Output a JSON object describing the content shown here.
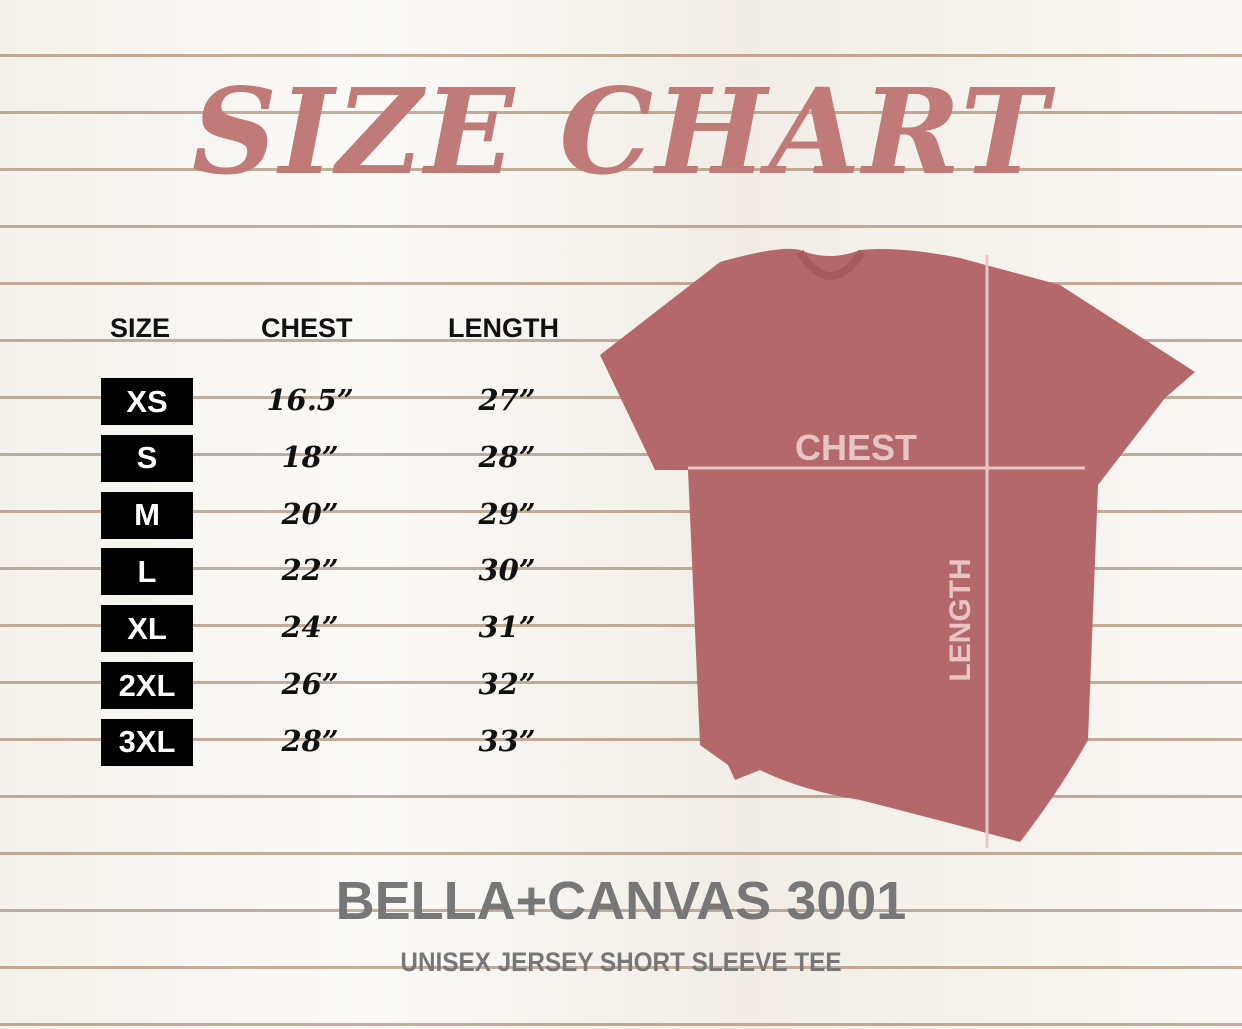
{
  "title": "SIZE CHART",
  "headers": {
    "size": "SIZE",
    "chest": "CHEST",
    "length": "LENGTH"
  },
  "rows": [
    {
      "size": "XS",
      "chest": "16.5”",
      "length": "27”"
    },
    {
      "size": "S",
      "chest": "18”",
      "length": "28”"
    },
    {
      "size": "M",
      "chest": "20”",
      "length": "29”"
    },
    {
      "size": "L",
      "chest": "22”",
      "length": "30”"
    },
    {
      "size": "XL",
      "chest": "24”",
      "length": "31”"
    },
    {
      "size": "2XL",
      "chest": "26”",
      "length": "32”"
    },
    {
      "size": "3XL",
      "chest": "28”",
      "length": "33”"
    }
  ],
  "shirt": {
    "chest_label": "CHEST",
    "length_label": "LENGTH",
    "color": "#b5686a"
  },
  "brand": "BELLA+CANVAS 3001",
  "subtitle": "UNISEX JERSEY SHORT SLEEVE TEE"
}
